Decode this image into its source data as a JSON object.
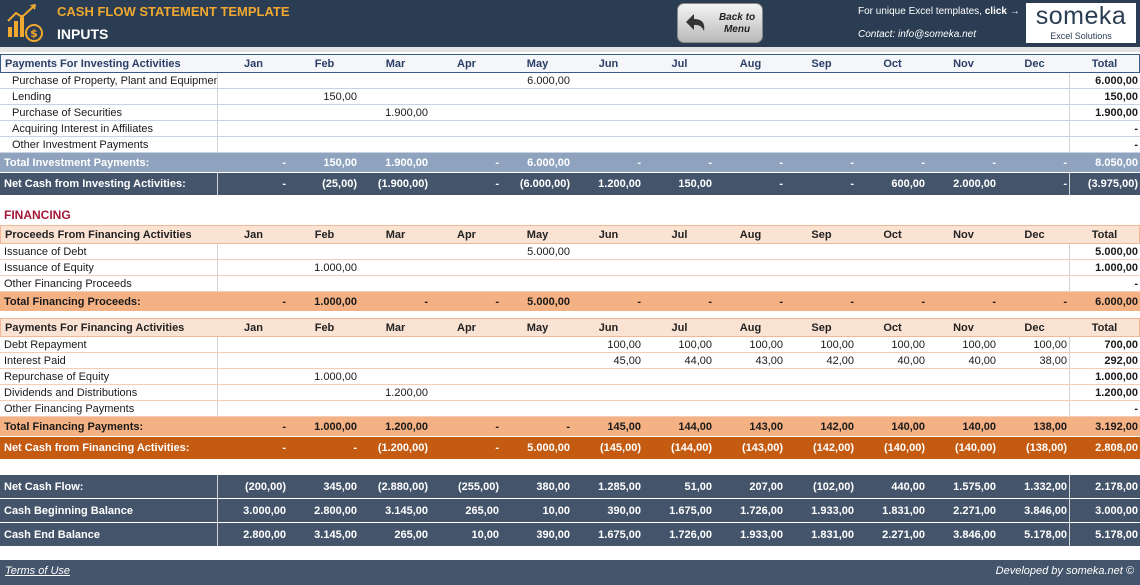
{
  "header": {
    "title": "CASH FLOW STATEMENT TEMPLATE",
    "subtitle": "INPUTS",
    "back_button": "Back to Menu",
    "promo_text": "For unique Excel templates, ",
    "promo_link": "click →",
    "contact": "Contact: info@someka.net",
    "brand_name": "someka",
    "brand_sub": "Excel Solutions"
  },
  "months": [
    "Jan",
    "Feb",
    "Mar",
    "Apr",
    "May",
    "Jun",
    "Jul",
    "Aug",
    "Sep",
    "Oct",
    "Nov",
    "Dec"
  ],
  "total_label": "Total",
  "investing": {
    "header": "Payments For Investing Activities",
    "rows": [
      {
        "label": "Purchase of Property, Plant and Equipment",
        "values": [
          "",
          "",
          "",
          "",
          "6.000,00",
          "",
          "",
          "",
          "",
          "",
          "",
          ""
        ],
        "total": "6.000,00"
      },
      {
        "label": "Lending",
        "values": [
          "",
          "150,00",
          "",
          "",
          "",
          "",
          "",
          "",
          "",
          "",
          "",
          ""
        ],
        "total": "150,00"
      },
      {
        "label": "Purchase of Securities",
        "values": [
          "",
          "",
          "1.900,00",
          "",
          "",
          "",
          "",
          "",
          "",
          "",
          "",
          ""
        ],
        "total": "1.900,00"
      },
      {
        "label": "Acquiring Interest in Affiliates",
        "values": [
          "",
          "",
          "",
          "",
          "",
          "",
          "",
          "",
          "",
          "",
          "",
          ""
        ],
        "total": "-"
      },
      {
        "label": "Other Investment Payments",
        "values": [
          "",
          "",
          "",
          "",
          "",
          "",
          "",
          "",
          "",
          "",
          "",
          ""
        ],
        "total": "-"
      }
    ],
    "total_row": {
      "label": "Total Investment Payments:",
      "values": [
        "-",
        "150,00",
        "1.900,00",
        "-",
        "6.000,00",
        "-",
        "-",
        "-",
        "-",
        "-",
        "-",
        "-"
      ],
      "total": "8.050,00"
    },
    "net_row": {
      "label": "Net Cash from Investing Activities:",
      "values": [
        "-",
        "(25,00)",
        "(1.900,00)",
        "-",
        "(6.000,00)",
        "1.200,00",
        "150,00",
        "-",
        "-",
        "600,00",
        "2.000,00",
        "-"
      ],
      "total": "(3.975,00)"
    }
  },
  "financing": {
    "title": "FINANCING",
    "proceeds_header": "Proceeds From Financing Activities",
    "proceeds_rows": [
      {
        "label": "Issuance of Debt",
        "values": [
          "",
          "",
          "",
          "",
          "5.000,00",
          "",
          "",
          "",
          "",
          "",
          "",
          ""
        ],
        "total": "5.000,00"
      },
      {
        "label": "Issuance of Equity",
        "values": [
          "",
          "1.000,00",
          "",
          "",
          "",
          "",
          "",
          "",
          "",
          "",
          "",
          ""
        ],
        "total": "1.000,00"
      },
      {
        "label": "Other Financing Proceeds",
        "values": [
          "",
          "",
          "",
          "",
          "",
          "",
          "",
          "",
          "",
          "",
          "",
          ""
        ],
        "total": "-"
      }
    ],
    "proceeds_total": {
      "label": "Total Financing Proceeds:",
      "values": [
        "-",
        "1.000,00",
        "-",
        "-",
        "5.000,00",
        "-",
        "-",
        "-",
        "-",
        "-",
        "-",
        "-"
      ],
      "total": "6.000,00"
    },
    "payments_header": "Payments For Financing Activities",
    "payments_rows": [
      {
        "label": "Debt Repayment",
        "values": [
          "",
          "",
          "",
          "",
          "",
          "100,00",
          "100,00",
          "100,00",
          "100,00",
          "100,00",
          "100,00",
          "100,00"
        ],
        "total": "700,00"
      },
      {
        "label": "Interest Paid",
        "values": [
          "",
          "",
          "",
          "",
          "",
          "45,00",
          "44,00",
          "43,00",
          "42,00",
          "40,00",
          "40,00",
          "38,00"
        ],
        "total": "292,00"
      },
      {
        "label": "Repurchase of Equity",
        "values": [
          "",
          "1.000,00",
          "",
          "",
          "",
          "",
          "",
          "",
          "",
          "",
          "",
          ""
        ],
        "total": "1.000,00"
      },
      {
        "label": "Dividends and Distributions",
        "values": [
          "",
          "",
          "1.200,00",
          "",
          "",
          "",
          "",
          "",
          "",
          "",
          "",
          ""
        ],
        "total": "1.200,00"
      },
      {
        "label": "Other Financing Payments",
        "values": [
          "",
          "",
          "",
          "",
          "",
          "",
          "",
          "",
          "",
          "",
          "",
          ""
        ],
        "total": "-"
      }
    ],
    "payments_total": {
      "label": "Total Financing Payments:",
      "values": [
        "-",
        "1.000,00",
        "1.200,00",
        "-",
        "-",
        "145,00",
        "144,00",
        "143,00",
        "142,00",
        "140,00",
        "140,00",
        "138,00"
      ],
      "total": "3.192,00"
    },
    "net_row": {
      "label": "Net Cash from Financing Activities:",
      "values": [
        "-",
        "-",
        "(1.200,00)",
        "-",
        "5.000,00",
        "(145,00)",
        "(144,00)",
        "(143,00)",
        "(142,00)",
        "(140,00)",
        "(140,00)",
        "(138,00)"
      ],
      "total": "2.808,00"
    }
  },
  "summary": {
    "net_cash_flow": {
      "label": "Net Cash Flow:",
      "values": [
        "(200,00)",
        "345,00",
        "(2.880,00)",
        "(255,00)",
        "380,00",
        "1.285,00",
        "51,00",
        "207,00",
        "(102,00)",
        "440,00",
        "1.575,00",
        "1.332,00"
      ],
      "total": "2.178,00"
    },
    "beginning": {
      "label": "Cash Beginning Balance",
      "values": [
        "3.000,00",
        "2.800,00",
        "3.145,00",
        "265,00",
        "10,00",
        "390,00",
        "1.675,00",
        "1.726,00",
        "1.933,00",
        "1.831,00",
        "2.271,00",
        "3.846,00"
      ],
      "total": "3.000,00"
    },
    "end": {
      "label": "Cash End Balance",
      "values": [
        "2.800,00",
        "3.145,00",
        "265,00",
        "10,00",
        "390,00",
        "1.675,00",
        "1.726,00",
        "1.933,00",
        "1.831,00",
        "2.271,00",
        "3.846,00",
        "5.178,00"
      ],
      "total": "5.178,00"
    }
  },
  "footer": {
    "terms": "Terms of Use",
    "developer": "Developed by someka.net ©"
  }
}
